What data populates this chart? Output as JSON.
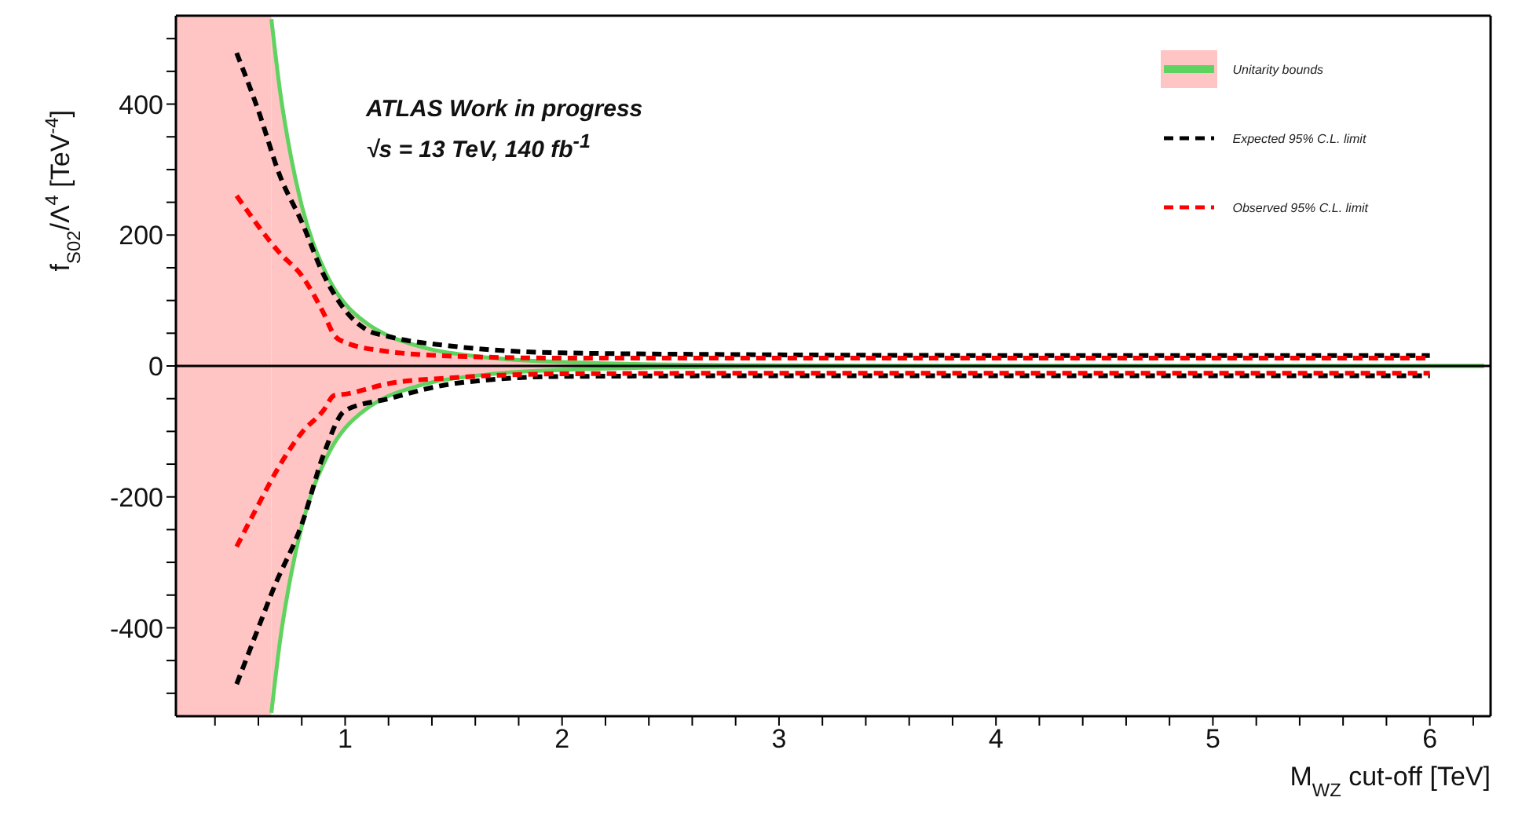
{
  "chart_data": {
    "type": "line",
    "title": null,
    "xlabel": "M$_{WZ}$ cut-off [TeV]",
    "ylabel": "f$_{S02}$/Λ$^{4}$ [TeV$^{-4}$]",
    "annotations": [
      "ATLAS Work in progress",
      "√s = 13 TeV, 140 fb$^{-1}$"
    ],
    "xlim": [
      0.22,
      6.28
    ],
    "ylim": [
      -535,
      535
    ],
    "xticks": [
      {
        "value": 0.4,
        "label": null
      },
      {
        "value": 0.6,
        "label": null
      },
      {
        "value": 0.8,
        "label": null
      },
      1,
      {
        "value": 1.2,
        "label": null
      },
      {
        "value": 1.4,
        "label": null
      },
      {
        "value": 1.6,
        "label": null
      },
      {
        "value": 1.8,
        "label": null
      },
      2,
      {
        "value": 2.2,
        "label": null
      },
      {
        "value": 2.4,
        "label": null
      },
      {
        "value": 2.6,
        "label": null
      },
      {
        "value": 2.8,
        "label": null
      },
      3,
      {
        "value": 3.2,
        "label": null
      },
      {
        "value": 3.4,
        "label": null
      },
      {
        "value": 3.6,
        "label": null
      },
      {
        "value": 3.8,
        "label": null
      },
      4,
      {
        "value": 4.2,
        "label": null
      },
      {
        "value": 4.4,
        "label": null
      },
      {
        "value": 4.6,
        "label": null
      },
      {
        "value": 4.8,
        "label": null
      },
      5,
      {
        "value": 5.2,
        "label": null
      },
      {
        "value": 5.4,
        "label": null
      },
      {
        "value": 5.6,
        "label": null
      },
      {
        "value": 5.8,
        "label": null
      },
      6,
      {
        "value": 6.2,
        "label": null
      }
    ],
    "yticks": [
      {
        "value": -500,
        "label": null
      },
      {
        "value": -450,
        "label": null
      },
      -400,
      {
        "value": -350,
        "label": null
      },
      {
        "value": -300,
        "label": null
      },
      {
        "value": -250,
        "label": null
      },
      -200,
      {
        "value": -150,
        "label": null
      },
      {
        "value": -100,
        "label": null
      },
      {
        "value": -50,
        "label": null
      },
      0,
      {
        "value": 50,
        "label": null
      },
      {
        "value": 100,
        "label": null
      },
      {
        "value": 150,
        "label": null
      },
      200,
      {
        "value": 250,
        "label": null
      },
      {
        "value": 300,
        "label": null
      },
      {
        "value": 350,
        "label": null
      },
      400,
      {
        "value": 450,
        "label": null
      },
      {
        "value": 500,
        "label": null
      }
    ],
    "grid": false,
    "legend": "top right",
    "marker": "none",
    "ref_lines": [
      {
        "axis": "y",
        "value": 0,
        "color": "#000000"
      }
    ],
    "bands": [
      {
        "axis": "x",
        "from": 0.22,
        "to": 0.66,
        "color": "#ffc4c4"
      }
    ],
    "series": [
      {
        "name": "Unitarity bounds",
        "color": "#5fd35f",
        "line_style": "solid",
        "x": [
          0.66,
          0.7,
          0.75,
          0.8,
          0.85,
          0.9,
          0.95,
          1.0,
          1.1,
          1.2,
          1.3,
          1.4,
          1.6,
          1.8,
          2.0,
          2.5,
          3.0,
          4.0,
          5.0,
          6.25
        ],
        "values": [
          530,
          420,
          320,
          245,
          190,
          150,
          118,
          95,
          65,
          46,
          34,
          25,
          15,
          9,
          6,
          2,
          1,
          0,
          0,
          0
        ],
        "lower": [
          -530,
          -420,
          -320,
          -245,
          -190,
          -150,
          -118,
          -95,
          -65,
          -46,
          -34,
          -25,
          -15,
          -9,
          -6,
          -2,
          -1,
          0,
          0,
          0
        ],
        "upper": [
          530,
          420,
          320,
          245,
          190,
          150,
          118,
          95,
          65,
          46,
          34,
          25,
          15,
          9,
          6,
          2,
          1,
          0,
          0,
          0
        ]
      },
      {
        "color": "#5fd35f",
        "line_style": "solid",
        "x": [
          0.66,
          0.7,
          0.75,
          0.8,
          0.85,
          0.9,
          0.95,
          1.0,
          1.1,
          1.2,
          1.3,
          1.4,
          1.6,
          1.8,
          2.0,
          2.5,
          3.0,
          4.0,
          5.0,
          6.25
        ],
        "values": [
          -530,
          -420,
          -320,
          -245,
          -190,
          -150,
          -118,
          -95,
          -65,
          -46,
          -34,
          -25,
          -15,
          -9,
          -6,
          -2,
          -1,
          0,
          0,
          0
        ]
      },
      {
        "name": "Expected 95% C.L. limit",
        "color": "#000000",
        "line_style": "dashed",
        "x": [
          0.5,
          0.6,
          0.7,
          0.8,
          0.9,
          1.0,
          1.1,
          1.2,
          1.5,
          2,
          3,
          4,
          5,
          6
        ],
        "values": [
          478,
          390,
          290,
          220,
          140,
          85,
          55,
          45,
          30,
          20,
          17,
          16,
          16,
          16
        ]
      },
      {
        "color": "#000000",
        "line_style": "dashed",
        "x": [
          0.5,
          0.6,
          0.67,
          0.8,
          0.9,
          1.0,
          1.2,
          1.5,
          2,
          3,
          4,
          5,
          6
        ],
        "values": [
          -486,
          -400,
          -340,
          -242,
          -136,
          -68,
          -50,
          -27,
          -16,
          -15,
          -15,
          -15,
          -15
        ]
      },
      {
        "name": "Observed 95% C.L. limit",
        "color": "#ff0000",
        "line_style": "dashed",
        "x": [
          0.5,
          0.7,
          0.8,
          0.9,
          0.95,
          1.0,
          1.2,
          1.5,
          2,
          3,
          4,
          5,
          6
        ],
        "values": [
          260,
          172,
          138,
          81,
          47,
          36,
          22,
          15,
          12,
          12,
          12,
          12,
          12
        ]
      },
      {
        "color": "#ff0000",
        "line_style": "dashed",
        "x": [
          0.5,
          0.6,
          0.7,
          0.8,
          0.9,
          0.95,
          1.0,
          1.2,
          1.5,
          2,
          3,
          4,
          5,
          6
        ],
        "values": [
          -276,
          -212,
          -151,
          -102,
          -68,
          -45,
          -43,
          -27,
          -18,
          -12,
          -11,
          -11,
          -11,
          -11
        ]
      }
    ]
  }
}
